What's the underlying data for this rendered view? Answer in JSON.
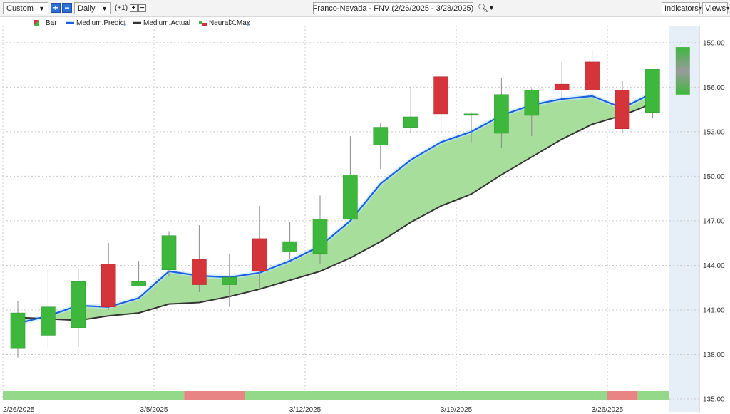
{
  "toolbar": {
    "period_select": "Custom",
    "interval_select": "Daily",
    "offset_label": "(+1)",
    "title": "Franco-Nevada - FNV (2/26/2025 - 3/28/2025)",
    "indicators_label": "Indicators",
    "views_label": "Views",
    "zoom_in_icon": "plus-icon",
    "zoom_out_icon": "minus-icon",
    "search_icon": "magnifier-icon"
  },
  "legend": {
    "bar": "Bar",
    "predict": "Medium.Predict",
    "actual": "Medium.Actual",
    "neural": "NeuralX.Max"
  },
  "colors": {
    "up": "#3db83d",
    "down": "#d4343a",
    "predict": "#1a5fe0",
    "actual": "#333333",
    "fill": "#a3dc96",
    "band_green": "#94d98a",
    "band_red": "#e88484",
    "forecast_bg": "#e6eef7"
  },
  "chart_data": {
    "type": "candlestick",
    "x_labels": [
      "2/26/2025",
      "3/5/2025",
      "3/12/2025",
      "3/19/2025",
      "3/26/2025"
    ],
    "x_label_index": [
      0,
      5,
      10,
      15,
      20
    ],
    "ylim": [
      135,
      160
    ],
    "yticks": [
      "159.00",
      "156.00",
      "153.00",
      "150.00",
      "147.00",
      "144.00",
      "141.00",
      "138.00",
      "135.00"
    ],
    "candles": [
      {
        "o": 138.4,
        "h": 141.6,
        "l": 137.8,
        "c": 140.8
      },
      {
        "o": 139.3,
        "h": 143.7,
        "l": 138.4,
        "c": 141.2
      },
      {
        "o": 139.8,
        "h": 143.8,
        "l": 138.5,
        "c": 142.9
      },
      {
        "o": 144.1,
        "h": 145.5,
        "l": 141.0,
        "c": 141.2
      },
      {
        "o": 142.6,
        "h": 144.3,
        "l": 142.6,
        "c": 142.9
      },
      {
        "o": 143.7,
        "h": 146.3,
        "l": 143.3,
        "c": 146.0
      },
      {
        "o": 144.4,
        "h": 146.7,
        "l": 142.2,
        "c": 142.7
      },
      {
        "o": 142.7,
        "h": 144.8,
        "l": 141.2,
        "c": 143.2
      },
      {
        "o": 145.8,
        "h": 148.0,
        "l": 142.5,
        "c": 143.6
      },
      {
        "o": 144.9,
        "h": 146.9,
        "l": 144.4,
        "c": 145.6
      },
      {
        "o": 144.8,
        "h": 148.7,
        "l": 144.1,
        "c": 147.1
      },
      {
        "o": 147.1,
        "h": 152.7,
        "l": 147.1,
        "c": 150.1
      },
      {
        "o": 152.1,
        "h": 153.6,
        "l": 150.5,
        "c": 153.3
      },
      {
        "o": 153.3,
        "h": 156.0,
        "l": 152.9,
        "c": 154.0
      },
      {
        "o": 156.7,
        "h": 156.7,
        "l": 152.8,
        "c": 154.2
      },
      {
        "o": 154.2,
        "h": 154.3,
        "l": 152.3,
        "c": 154.2
      },
      {
        "o": 152.9,
        "h": 156.6,
        "l": 151.9,
        "c": 155.5
      },
      {
        "o": 154.1,
        "h": 155.9,
        "l": 152.7,
        "c": 155.8
      },
      {
        "o": 156.2,
        "h": 157.7,
        "l": 155.3,
        "c": 155.8
      },
      {
        "o": 157.7,
        "h": 158.5,
        "l": 154.8,
        "c": 155.8
      },
      {
        "o": 155.8,
        "h": 156.4,
        "l": 152.9,
        "c": 153.2
      },
      {
        "o": 154.3,
        "h": 157.2,
        "l": 153.9,
        "c": 157.2
      }
    ],
    "predict": [
      140.1,
      140.6,
      141.3,
      141.2,
      141.8,
      143.6,
      143.3,
      143.2,
      143.5,
      144.3,
      145.3,
      147.0,
      149.5,
      151.1,
      152.3,
      153.0,
      154.1,
      154.8,
      155.2,
      155.4,
      154.6,
      155.6
    ],
    "actual": [
      140.5,
      140.4,
      140.3,
      140.6,
      140.8,
      141.4,
      141.5,
      141.9,
      142.4,
      143.0,
      143.6,
      144.5,
      145.6,
      146.9,
      148.0,
      148.8,
      150.1,
      151.3,
      152.5,
      153.5,
      154.1,
      154.9
    ],
    "forecast": {
      "o": 155.5,
      "h": 158.7,
      "l": 155.5,
      "c": 158.7
    },
    "band_segments": [
      {
        "from": 0,
        "to": 6,
        "signal": "up"
      },
      {
        "from": 6,
        "to": 8,
        "signal": "down"
      },
      {
        "from": 8,
        "to": 20,
        "signal": "up"
      },
      {
        "from": 20,
        "to": 21,
        "signal": "down"
      },
      {
        "from": 21,
        "to": 22,
        "signal": "up"
      }
    ]
  }
}
